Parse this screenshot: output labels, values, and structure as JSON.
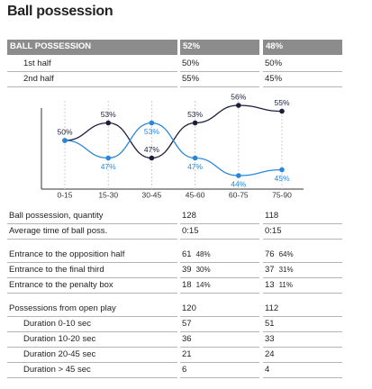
{
  "title": "Ball possession",
  "table": {
    "header": [
      "BALL POSSESSION",
      "52%",
      "48%"
    ],
    "rows": [
      [
        "1st half",
        "50%",
        "50%"
      ],
      [
        "2nd half",
        "55%",
        "45%"
      ]
    ]
  },
  "chart_data": {
    "type": "line",
    "categories": [
      "0-15",
      "15-30",
      "30-45",
      "45-60",
      "60-75",
      "75-90"
    ],
    "series": [
      {
        "color": "#1c1c3c",
        "values": [
          50,
          53,
          47,
          53,
          56,
          55
        ],
        "value_labels": [
          "50%",
          "53%",
          "47%",
          "53%",
          "56%",
          "55%"
        ]
      },
      {
        "color": "#2a86d6",
        "values": [
          50,
          47,
          53,
          47,
          44,
          45
        ],
        "value_labels": [
          null,
          "47%",
          "53%",
          "47%",
          "44%",
          "45%"
        ]
      }
    ]
  },
  "stats": [
    [
      [
        "Ball possession, quantity",
        "128",
        "118"
      ],
      [
        "Average time of ball poss.",
        "0:15",
        "0:15"
      ]
    ],
    [
      [
        "Entrance to the opposition half",
        [
          "61",
          "48%"
        ],
        [
          "76",
          "64%"
        ]
      ],
      [
        "Entrance to the final third",
        [
          "39",
          "30%"
        ],
        [
          "37",
          "31%"
        ]
      ],
      [
        "Entrance to the penalty box",
        [
          "18",
          "14%"
        ],
        [
          "13",
          "11%"
        ]
      ]
    ],
    [
      [
        "Possessions from open play",
        "120",
        "112"
      ],
      [
        "Duration  0-10 sec",
        "57",
        "51"
      ],
      [
        "Duration  10-20 sec",
        "36",
        "33"
      ],
      [
        "Duration  20-45 sec",
        "21",
        "24"
      ],
      [
        "Duration  > 45 sec",
        "6",
        "4"
      ]
    ]
  ]
}
